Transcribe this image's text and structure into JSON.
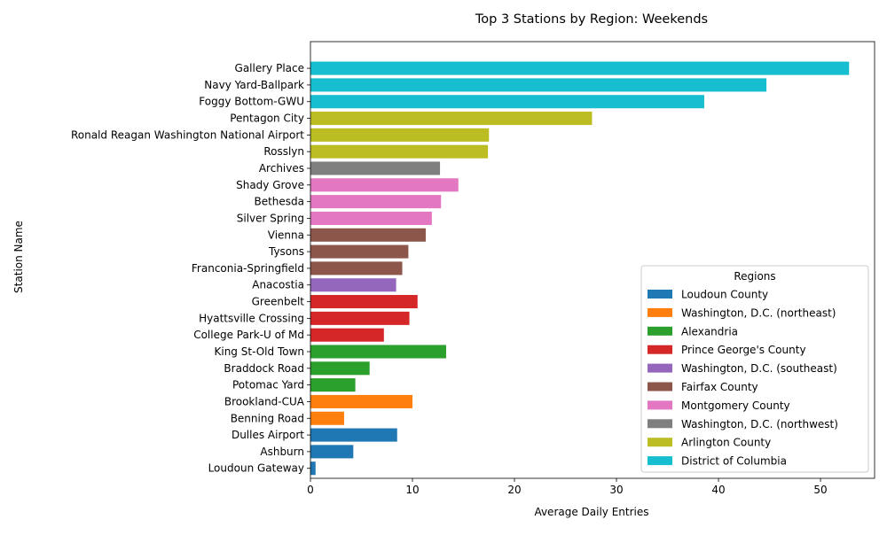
{
  "chart_data": {
    "type": "bar",
    "orientation": "horizontal",
    "title": "Top 3 Stations by Region: Weekends",
    "xlabel": "Average Daily Entries",
    "ylabel": "Station Name",
    "xlim": [
      0,
      55.3
    ],
    "xticks": [
      0,
      10,
      20,
      30,
      40,
      50
    ],
    "grid": false,
    "legend": {
      "title": "Regions",
      "placement": "lower-right",
      "entries": [
        {
          "name": "Loudoun County",
          "color": "#1f77b4"
        },
        {
          "name": "Washington, D.C. (northeast)",
          "color": "#ff7f0e"
        },
        {
          "name": "Alexandria",
          "color": "#2ca02c"
        },
        {
          "name": "Prince George's County",
          "color": "#d62728"
        },
        {
          "name": "Washington, D.C. (southeast)",
          "color": "#9467bd"
        },
        {
          "name": "Fairfax County",
          "color": "#8c564b"
        },
        {
          "name": "Montgomery County",
          "color": "#e377c2"
        },
        {
          "name": "Washington, D.C. (northwest)",
          "color": "#7f7f7f"
        },
        {
          "name": "Arlington County",
          "color": "#bcbd22"
        },
        {
          "name": "District of Columbia",
          "color": "#17becf"
        }
      ]
    },
    "bars": [
      {
        "station": "Loudoun Gateway",
        "value": 0.5,
        "region": "Loudoun County"
      },
      {
        "station": "Ashburn",
        "value": 4.2,
        "region": "Loudoun County"
      },
      {
        "station": "Dulles Airport",
        "value": 8.5,
        "region": "Loudoun County"
      },
      {
        "station": "Benning Road",
        "value": 3.3,
        "region": "Washington, D.C. (northeast)"
      },
      {
        "station": "Brookland-CUA",
        "value": 10.0,
        "region": "Washington, D.C. (northeast)"
      },
      {
        "station": "Potomac Yard",
        "value": 4.4,
        "region": "Alexandria"
      },
      {
        "station": "Braddock Road",
        "value": 5.8,
        "region": "Alexandria"
      },
      {
        "station": "King St-Old Town",
        "value": 13.3,
        "region": "Alexandria"
      },
      {
        "station": "College Park-U of Md",
        "value": 7.2,
        "region": "Prince George's County"
      },
      {
        "station": "Hyattsville Crossing",
        "value": 9.7,
        "region": "Prince George's County"
      },
      {
        "station": "Greenbelt",
        "value": 10.5,
        "region": "Prince George's County"
      },
      {
        "station": "Anacostia",
        "value": 8.4,
        "region": "Washington, D.C. (southeast)"
      },
      {
        "station": "Franconia-Springfield",
        "value": 9.0,
        "region": "Fairfax County"
      },
      {
        "station": "Tysons",
        "value": 9.6,
        "region": "Fairfax County"
      },
      {
        "station": "Vienna",
        "value": 11.3,
        "region": "Fairfax County"
      },
      {
        "station": "Silver Spring",
        "value": 11.9,
        "region": "Montgomery County"
      },
      {
        "station": "Bethesda",
        "value": 12.8,
        "region": "Montgomery County"
      },
      {
        "station": "Shady Grove",
        "value": 14.5,
        "region": "Montgomery County"
      },
      {
        "station": "Archives",
        "value": 12.7,
        "region": "Washington, D.C. (northwest)"
      },
      {
        "station": "Rosslyn",
        "value": 17.4,
        "region": "Arlington County"
      },
      {
        "station": "Ronald Reagan Washington National Airport",
        "value": 17.5,
        "region": "Arlington County"
      },
      {
        "station": "Pentagon City",
        "value": 27.6,
        "region": "Arlington County"
      },
      {
        "station": "Foggy Bottom-GWU",
        "value": 38.6,
        "region": "District of Columbia"
      },
      {
        "station": "Navy Yard-Ballpark",
        "value": 44.7,
        "region": "District of Columbia"
      },
      {
        "station": "Gallery Place",
        "value": 52.8,
        "region": "District of Columbia"
      }
    ]
  }
}
